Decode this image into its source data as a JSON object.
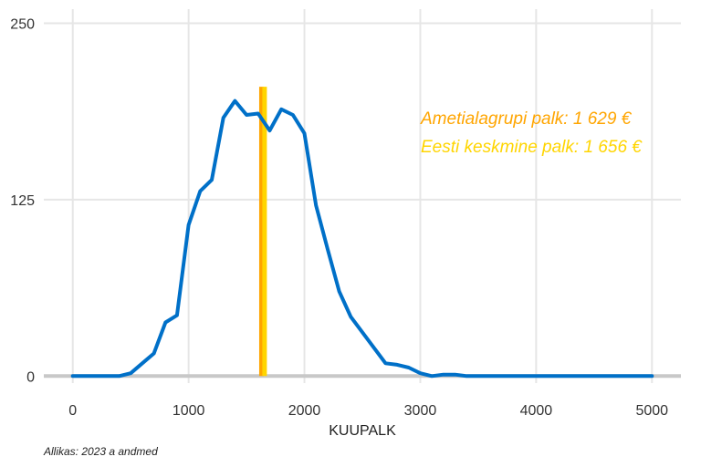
{
  "chart_data": {
    "type": "line",
    "xlabel": "KUUPALK",
    "ylabel": "",
    "xlim": [
      -250,
      5250
    ],
    "ylim": [
      -5,
      260
    ],
    "x_ticks": [
      0,
      1000,
      2000,
      3000,
      4000,
      5000
    ],
    "y_ticks": [
      0,
      125,
      250
    ],
    "x_tick_labels": [
      "0",
      "1000",
      "2000",
      "3000",
      "4000",
      "5000"
    ],
    "y_tick_labels": [
      "0",
      "125",
      "250"
    ],
    "grid": true,
    "series": [
      {
        "color": "#0070C8",
        "x": [
          0,
          100,
          200,
          300,
          400,
          500,
          600,
          700,
          800,
          900,
          1000,
          1100,
          1200,
          1300,
          1400,
          1500,
          1600,
          1700,
          1800,
          1900,
          2000,
          2100,
          2200,
          2300,
          2400,
          2500,
          2600,
          2700,
          2800,
          2900,
          3000,
          3100,
          3200,
          3300,
          3400,
          3500,
          3600,
          3700,
          3800,
          3900,
          4000,
          4100,
          4200,
          4300,
          4400,
          4500,
          4600,
          4700,
          4800,
          4900,
          5000
        ],
        "y": [
          0,
          0,
          0,
          0,
          0,
          2,
          9,
          16,
          38,
          43,
          107,
          131,
          139,
          183,
          195,
          185,
          186,
          174,
          189,
          185,
          172,
          121,
          90,
          60,
          42,
          31,
          20,
          9,
          8,
          6,
          2,
          0,
          1,
          1,
          0,
          0,
          0,
          0,
          0,
          0,
          0,
          0,
          0,
          0,
          0,
          0,
          0,
          0,
          0,
          0,
          0
        ]
      }
    ],
    "vlines": [
      {
        "x": 1629,
        "color": "#FFA500"
      },
      {
        "x": 1656,
        "color": "#FFD500"
      }
    ],
    "annotations": [
      {
        "text": "Ametialagrupi palk: 1 629 €",
        "color": "#FFA500"
      },
      {
        "text": "Eesti keskmine palk: 1 656 €",
        "color": "#FFD500"
      }
    ]
  },
  "caption": "Allikas: 2023 a andmed"
}
